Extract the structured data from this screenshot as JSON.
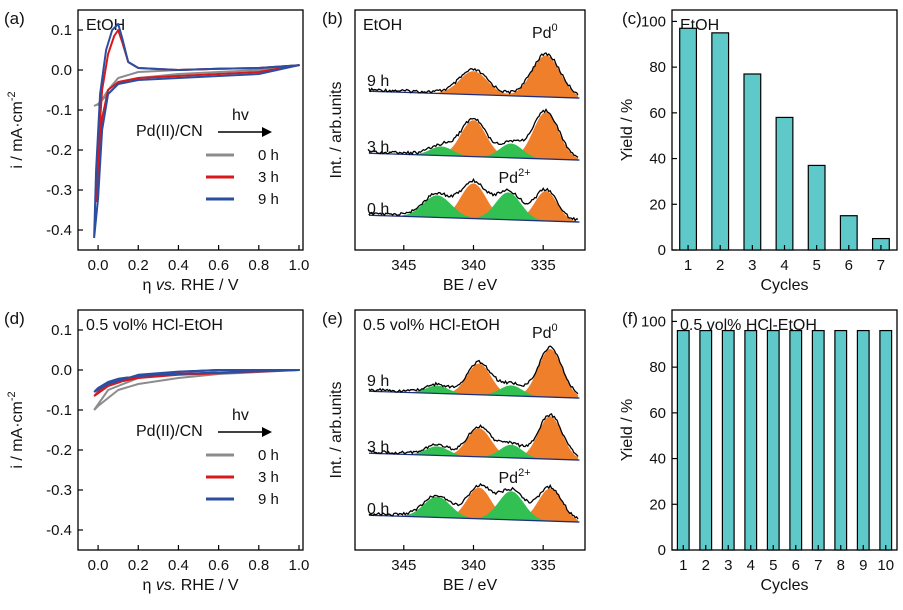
{
  "colors": {
    "gray": "#8c8c8c",
    "red": "#d7191c",
    "blue": "#2b4ea2",
    "orange": "#f07f2b",
    "green": "#33c053",
    "teal": "#5fc9c9",
    "baseline": "#1d2f7a",
    "frame": "#000000"
  },
  "chart_data": [
    {
      "id": "a",
      "type": "line",
      "panel_label": "(a)",
      "inset_title": "EtOH",
      "xlabel_pre": "η ",
      "xlabel_italic": "vs.",
      "xlabel_post": " RHE / V",
      "ylabel": "i / mA·cm",
      "ylabel_sup": "-2",
      "xlim": [
        -0.1,
        1.02
      ],
      "ylim": [
        -0.45,
        0.15
      ],
      "xticks": [
        "0.0",
        "0.2",
        "0.4",
        "0.6",
        "0.8",
        "1.0"
      ],
      "xtick_values": [
        0.0,
        0.2,
        0.4,
        0.6,
        0.8,
        1.0
      ],
      "yticks": [
        "0.1",
        "0.0",
        "-0.1",
        "-0.2",
        "-0.3",
        "-0.4"
      ],
      "ytick_values": [
        0.1,
        0.0,
        -0.1,
        -0.2,
        -0.3,
        -0.4
      ],
      "reaction": {
        "left": "Pd(II)/CN",
        "above": "hv"
      },
      "legend": [
        "0 h",
        "3 h",
        "9 h"
      ],
      "series": [
        {
          "name": "0 h",
          "color": "gray",
          "x": [
            0.0,
            0.05,
            0.1,
            0.2,
            0.4,
            0.6,
            0.8,
            1.0,
            0.8,
            0.6,
            0.4,
            0.2,
            0.1,
            0.05,
            0.0,
            -0.02
          ],
          "y": [
            -0.09,
            -0.05,
            -0.02,
            -0.005,
            0.0,
            0.003,
            0.005,
            0.012,
            0.0,
            -0.005,
            -0.01,
            -0.02,
            -0.035,
            -0.06,
            -0.085,
            -0.09
          ]
        },
        {
          "name": "3 h",
          "color": "red",
          "x": [
            -0.01,
            0.0,
            0.02,
            0.05,
            0.08,
            0.1,
            0.12,
            0.15,
            0.2,
            0.4,
            0.6,
            0.8,
            1.0,
            0.8,
            0.6,
            0.4,
            0.2,
            0.1,
            0.05,
            0.02,
            0.0,
            -0.01
          ],
          "y": [
            -0.33,
            -0.2,
            -0.05,
            0.04,
            0.085,
            0.1,
            0.07,
            0.02,
            0.005,
            0.0,
            0.003,
            0.005,
            0.012,
            -0.005,
            -0.01,
            -0.015,
            -0.02,
            -0.03,
            -0.05,
            -0.12,
            -0.26,
            -0.33
          ]
        },
        {
          "name": "9 h",
          "color": "blue",
          "x": [
            -0.02,
            -0.01,
            0.01,
            0.04,
            0.07,
            0.1,
            0.12,
            0.15,
            0.2,
            0.4,
            0.6,
            0.8,
            1.0,
            0.8,
            0.6,
            0.4,
            0.2,
            0.1,
            0.05,
            0.02,
            0.0,
            -0.02
          ],
          "y": [
            -0.42,
            -0.25,
            -0.06,
            0.05,
            0.1,
            0.115,
            0.08,
            0.02,
            0.005,
            0.0,
            0.003,
            0.005,
            0.012,
            -0.01,
            -0.015,
            -0.02,
            -0.025,
            -0.035,
            -0.06,
            -0.15,
            -0.32,
            -0.42
          ]
        }
      ]
    },
    {
      "id": "b",
      "type": "area",
      "panel_label": "(b)",
      "inset_title": "EtOH",
      "xlabel": "BE / eV",
      "ylabel": "Int. / arb.units",
      "xlim": [
        348.5,
        332.0
      ],
      "xticks": [
        "345",
        "340",
        "335"
      ],
      "xtick_values": [
        345,
        340,
        335
      ],
      "annotations": [
        {
          "text": "Pd",
          "sup": "0",
          "color": "orange",
          "x": 334.8,
          "row": "top"
        },
        {
          "text": "Pd",
          "sup": "2+",
          "color": "green",
          "x": 337.2,
          "row": "bottom"
        }
      ],
      "spectra": [
        {
          "name": "9 h",
          "orange_peaks": [
            [
              340.0,
              1.0,
              0.9
            ],
            [
              334.8,
              1.0,
              1.6
            ]
          ],
          "green_peaks": [],
          "envelope_peaks": [
            [
              340.0,
              1.0,
              0.9
            ],
            [
              334.8,
              1.0,
              1.6
            ]
          ]
        },
        {
          "name": "3 h",
          "orange_peaks": [
            [
              340.0,
              0.9,
              1.4
            ],
            [
              334.8,
              0.9,
              1.8
            ]
          ],
          "green_peaks": [
            [
              342.3,
              0.8,
              0.35
            ],
            [
              337.3,
              0.8,
              0.55
            ]
          ],
          "envelope_peaks": [
            [
              340.0,
              0.9,
              1.4
            ],
            [
              334.8,
              0.9,
              1.8
            ],
            [
              342.3,
              0.8,
              0.35
            ],
            [
              337.3,
              0.8,
              0.55
            ]
          ]
        },
        {
          "name": "0 h",
          "orange_peaks": [
            [
              340.0,
              0.9,
              1.35
            ],
            [
              334.8,
              0.8,
              1.15
            ]
          ],
          "green_peaks": [
            [
              342.6,
              1.0,
              0.85
            ],
            [
              337.5,
              0.9,
              1.05
            ]
          ],
          "envelope_peaks": [
            [
              340.0,
              0.9,
              1.35
            ],
            [
              334.8,
              0.8,
              1.15
            ],
            [
              342.6,
              1.0,
              0.85
            ],
            [
              337.5,
              0.9,
              1.05
            ]
          ]
        }
      ]
    },
    {
      "id": "c",
      "type": "bar",
      "panel_label": "(c)",
      "inset_title": "EtOH",
      "xlabel": "Cycles",
      "ylabel": "Yield / %",
      "ylim": [
        0,
        105
      ],
      "yticks": [
        "0",
        "20",
        "40",
        "60",
        "80",
        "100"
      ],
      "ytick_values": [
        0,
        20,
        40,
        60,
        80,
        100
      ],
      "categories": [
        "1",
        "2",
        "3",
        "4",
        "5",
        "6",
        "7"
      ],
      "values": [
        97,
        95,
        77,
        58,
        37,
        15,
        5
      ]
    },
    {
      "id": "d",
      "type": "line",
      "panel_label": "(d)",
      "inset_title": "0.5 vol% HCl-EtOH",
      "xlabel_pre": "η ",
      "xlabel_italic": "vs.",
      "xlabel_post": " RHE / V",
      "ylabel": "i / mA·cm",
      "ylabel_sup": "-2",
      "xlim": [
        -0.1,
        1.02
      ],
      "ylim": [
        -0.45,
        0.15
      ],
      "xticks": [
        "0.0",
        "0.2",
        "0.4",
        "0.6",
        "0.8",
        "1.0"
      ],
      "xtick_values": [
        0.0,
        0.2,
        0.4,
        0.6,
        0.8,
        1.0
      ],
      "yticks": [
        "0.1",
        "0.0",
        "-0.1",
        "-0.2",
        "-0.3",
        "-0.4"
      ],
      "ytick_values": [
        0.1,
        0.0,
        -0.1,
        -0.2,
        -0.3,
        -0.4
      ],
      "reaction": {
        "left": "Pd(II)/CN",
        "above": "hv"
      },
      "legend": [
        "0 h",
        "3 h",
        "9 h"
      ],
      "series": [
        {
          "name": "0 h",
          "color": "gray",
          "x": [
            -0.02,
            0.05,
            0.2,
            0.4,
            0.6,
            0.8,
            1.0,
            0.8,
            0.6,
            0.4,
            0.2,
            0.1,
            0.05,
            0.0,
            -0.02
          ],
          "y": [
            -0.1,
            -0.05,
            -0.02,
            -0.005,
            0.0,
            0.0,
            0.0,
            -0.005,
            -0.01,
            -0.02,
            -0.035,
            -0.05,
            -0.07,
            -0.09,
            -0.1
          ]
        },
        {
          "name": "3 h",
          "color": "red",
          "x": [
            -0.02,
            0.05,
            0.2,
            0.4,
            0.6,
            0.8,
            1.0,
            0.8,
            0.6,
            0.4,
            0.2,
            0.1,
            0.05,
            0.0,
            -0.02
          ],
          "y": [
            -0.065,
            -0.04,
            -0.015,
            -0.005,
            0.0,
            0.0,
            0.0,
            -0.004,
            -0.008,
            -0.012,
            -0.02,
            -0.03,
            -0.04,
            -0.055,
            -0.065
          ]
        },
        {
          "name": "9 h",
          "color": "blue",
          "x": [
            -0.02,
            0.05,
            0.2,
            0.4,
            0.6,
            0.8,
            1.0,
            0.8,
            0.6,
            0.4,
            0.2,
            0.1,
            0.05,
            0.0,
            -0.02
          ],
          "y": [
            -0.055,
            -0.035,
            -0.012,
            -0.004,
            0.0,
            0.0,
            0.0,
            -0.003,
            -0.006,
            -0.01,
            -0.015,
            -0.022,
            -0.03,
            -0.045,
            -0.055
          ]
        }
      ]
    },
    {
      "id": "e",
      "type": "area",
      "panel_label": "(e)",
      "inset_title": "0.5 vol% HCl-EtOH",
      "xlabel": "BE / eV",
      "ylabel": "Int. / arb.units",
      "xlim": [
        348.5,
        332.0
      ],
      "xticks": [
        "345",
        "340",
        "335"
      ],
      "xtick_values": [
        345,
        340,
        335
      ],
      "annotations": [
        {
          "text": "Pd",
          "sup": "0",
          "color": "orange",
          "x": 334.8,
          "row": "top"
        },
        {
          "text": "Pd",
          "sup": "2+",
          "color": "green",
          "x": 337.2,
          "row": "bottom"
        }
      ],
      "spectra": [
        {
          "name": "9 h",
          "orange_peaks": [
            [
              339.6,
              0.85,
              1.2
            ],
            [
              334.5,
              0.85,
              1.85
            ]
          ],
          "green_peaks": [
            [
              342.6,
              0.8,
              0.3
            ],
            [
              337.3,
              0.8,
              0.4
            ]
          ],
          "envelope_peaks": [
            [
              339.6,
              0.85,
              1.2
            ],
            [
              334.5,
              0.85,
              1.85
            ],
            [
              342.6,
              0.8,
              0.3
            ],
            [
              337.3,
              0.8,
              0.4
            ]
          ]
        },
        {
          "name": "3 h",
          "orange_peaks": [
            [
              339.6,
              0.85,
              1.1
            ],
            [
              334.5,
              0.85,
              1.65
            ]
          ],
          "green_peaks": [
            [
              342.6,
              0.8,
              0.35
            ],
            [
              337.3,
              0.8,
              0.5
            ]
          ],
          "envelope_peaks": [
            [
              339.6,
              0.85,
              1.1
            ],
            [
              334.5,
              0.85,
              1.65
            ],
            [
              342.6,
              0.8,
              0.35
            ],
            [
              337.3,
              0.8,
              0.5
            ]
          ]
        },
        {
          "name": "0 h",
          "orange_peaks": [
            [
              339.6,
              0.85,
              1.2
            ],
            [
              334.5,
              0.85,
              1.25
            ]
          ],
          "green_peaks": [
            [
              342.6,
              0.95,
              0.8
            ],
            [
              337.3,
              0.9,
              1.1
            ]
          ],
          "envelope_peaks": [
            [
              339.6,
              0.85,
              1.2
            ],
            [
              334.5,
              0.85,
              1.25
            ],
            [
              342.6,
              0.95,
              0.8
            ],
            [
              337.3,
              0.9,
              1.1
            ]
          ]
        }
      ]
    },
    {
      "id": "f",
      "type": "bar",
      "panel_label": "(f)",
      "inset_title": "0.5 vol% HCl-EtOH",
      "xlabel": "Cycles",
      "ylabel": "Yield / %",
      "ylim": [
        0,
        105
      ],
      "yticks": [
        "0",
        "20",
        "40",
        "60",
        "80",
        "100"
      ],
      "ytick_values": [
        0,
        20,
        40,
        60,
        80,
        100
      ],
      "categories": [
        "1",
        "2",
        "3",
        "4",
        "5",
        "6",
        "7",
        "8",
        "9",
        "10"
      ],
      "values": [
        96,
        96,
        96,
        96,
        96,
        96,
        96,
        96,
        96,
        96
      ]
    }
  ]
}
